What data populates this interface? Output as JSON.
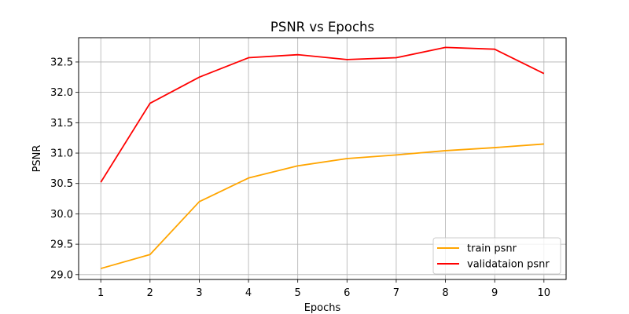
{
  "chart_data": {
    "type": "line",
    "title": "PSNR vs Epochs",
    "xlabel": "Epochs",
    "ylabel": "PSNR",
    "x": [
      1,
      2,
      3,
      4,
      5,
      6,
      7,
      8,
      9,
      10
    ],
    "xlim": [
      0.55,
      10.45
    ],
    "ylim": [
      28.92,
      32.9
    ],
    "xticks": [
      1,
      2,
      3,
      4,
      5,
      6,
      7,
      8,
      9,
      10
    ],
    "yticks": [
      29.0,
      29.5,
      30.0,
      30.5,
      31.0,
      31.5,
      32.0,
      32.5
    ],
    "ytick_labels": [
      "29.0",
      "29.5",
      "30.0",
      "30.5",
      "31.0",
      "31.5",
      "32.0",
      "32.5"
    ],
    "grid": true,
    "legend_position": "lower-right",
    "series": [
      {
        "name": "train psnr",
        "color": "#FFA500",
        "values": [
          29.1,
          29.33,
          30.2,
          30.59,
          30.79,
          30.91,
          30.97,
          31.04,
          31.09,
          31.15
        ]
      },
      {
        "name": "validataion psnr",
        "color": "#FF0000",
        "values": [
          30.52,
          31.82,
          32.25,
          32.57,
          32.62,
          32.54,
          32.57,
          32.74,
          32.71,
          32.31
        ]
      }
    ]
  }
}
